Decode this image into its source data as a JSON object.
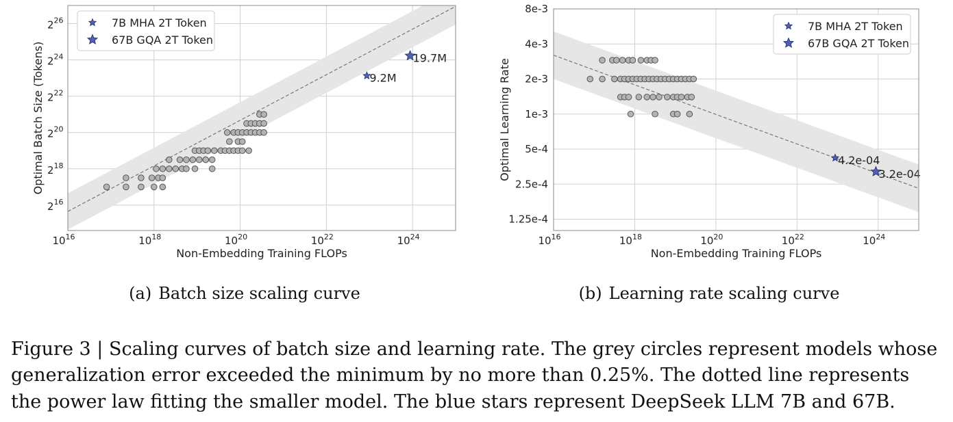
{
  "chart_data": [
    {
      "type": "scatter",
      "panel_label": "(a)",
      "subcaption": "Batch size scaling curve",
      "xlabel": "Non-Embedding Training FLOPs",
      "ylabel": "Optimal Batch Size (Tokens)",
      "x_scale": "log10",
      "y_scale": "log2",
      "xlim_exp10": [
        16,
        25
      ],
      "ylim_exp2": [
        14.6,
        27.0
      ],
      "x_ticks": [
        {
          "base": "10",
          "exp": "16",
          "v": 16
        },
        {
          "base": "10",
          "exp": "18",
          "v": 18
        },
        {
          "base": "10",
          "exp": "20",
          "v": 20
        },
        {
          "base": "10",
          "exp": "22",
          "v": 22
        },
        {
          "base": "10",
          "exp": "24",
          "v": 24
        }
      ],
      "y_ticks": [
        {
          "base": "2",
          "exp": "16",
          "v": 16
        },
        {
          "base": "2",
          "exp": "18",
          "v": 18
        },
        {
          "base": "2",
          "exp": "20",
          "v": 20
        },
        {
          "base": "2",
          "exp": "22",
          "v": 22
        },
        {
          "base": "2",
          "exp": "24",
          "v": 24
        },
        {
          "base": "2",
          "exp": "26",
          "v": 26
        }
      ],
      "grid": true,
      "legend_position": "top-left",
      "fit_line": {
        "style": "dashed",
        "x": [
          16,
          25
        ],
        "y": [
          15.65,
          26.95
        ]
      },
      "band_halfwidth_log2": 1.0,
      "points_log10x_log2y": [
        [
          16.9,
          17
        ],
        [
          17.35,
          17
        ],
        [
          17.35,
          17.5
        ],
        [
          17.7,
          17
        ],
        [
          17.7,
          17.5
        ],
        [
          17.95,
          17.5
        ],
        [
          18.1,
          17.5
        ],
        [
          18.2,
          17.5
        ],
        [
          18.0,
          17
        ],
        [
          18.2,
          17
        ],
        [
          18.05,
          18
        ],
        [
          18.2,
          18
        ],
        [
          18.35,
          18
        ],
        [
          18.5,
          18
        ],
        [
          18.35,
          18.5
        ],
        [
          18.6,
          18.5
        ],
        [
          18.75,
          18.5
        ],
        [
          18.9,
          18.5
        ],
        [
          18.65,
          18
        ],
        [
          18.75,
          18
        ],
        [
          18.95,
          18
        ],
        [
          19.05,
          18.5
        ],
        [
          19.2,
          18.5
        ],
        [
          19.35,
          18.5
        ],
        [
          18.95,
          19
        ],
        [
          19.05,
          19
        ],
        [
          19.15,
          19
        ],
        [
          19.25,
          19
        ],
        [
          19.4,
          19
        ],
        [
          19.55,
          19
        ],
        [
          19.35,
          18
        ],
        [
          19.2,
          18.5
        ],
        [
          19.65,
          19
        ],
        [
          19.75,
          19
        ],
        [
          19.85,
          19
        ],
        [
          19.95,
          19
        ],
        [
          20.05,
          19
        ],
        [
          20.2,
          19
        ],
        [
          19.75,
          19.5
        ],
        [
          19.95,
          19.5
        ],
        [
          20.05,
          19.5
        ],
        [
          19.7,
          20
        ],
        [
          19.85,
          20
        ],
        [
          19.95,
          20
        ],
        [
          20.05,
          20
        ],
        [
          20.15,
          20
        ],
        [
          20.25,
          20
        ],
        [
          20.35,
          20
        ],
        [
          20.45,
          20
        ],
        [
          20.55,
          20
        ],
        [
          20.15,
          20.5
        ],
        [
          20.25,
          20.5
        ],
        [
          20.35,
          20.5
        ],
        [
          20.45,
          20.5
        ],
        [
          20.55,
          20.5
        ],
        [
          20.45,
          21
        ],
        [
          20.55,
          21
        ]
      ],
      "series": [
        {
          "name": "7B MHA 2T Token",
          "x_flops": "8.7e22",
          "y_log2": 23.13,
          "annotation": "9.2M",
          "marker": "star-small"
        },
        {
          "name": "67B GQA 2T Token",
          "x_flops": "8.8e23",
          "y_log2": 24.23,
          "annotation": "19.7M",
          "marker": "star-large"
        }
      ]
    },
    {
      "type": "scatter",
      "panel_label": "(b)",
      "subcaption": "Learning rate scaling curve",
      "xlabel": "Non-Embedding Training FLOPs",
      "ylabel": "Optimal Learning Rate",
      "x_scale": "log10",
      "y_scale": "log2",
      "xlim_exp10": [
        16,
        25
      ],
      "ylim": [
        0.0001,
        0.008
      ],
      "x_ticks": [
        {
          "base": "10",
          "exp": "16",
          "v": 16
        },
        {
          "base": "10",
          "exp": "18",
          "v": 18
        },
        {
          "base": "10",
          "exp": "20",
          "v": 20
        },
        {
          "base": "10",
          "exp": "22",
          "v": 22
        },
        {
          "base": "10",
          "exp": "24",
          "v": 24
        }
      ],
      "y_ticks": [
        {
          "label": "8e-3",
          "v": 0.008
        },
        {
          "label": "4e-3",
          "v": 0.004
        },
        {
          "label": "2e-3",
          "v": 0.002
        },
        {
          "label": "1e-3",
          "v": 0.001
        },
        {
          "label": "5e-4",
          "v": 0.0005
        },
        {
          "label": "2.5e-4",
          "v": 0.00025
        },
        {
          "label": "1.25e-4",
          "v": 0.000125
        }
      ],
      "grid": true,
      "legend_position": "top-right",
      "fit_line": {
        "style": "dashed",
        "x": [
          16,
          25
        ],
        "y": [
          0.0032,
          0.00023
        ]
      },
      "band_factor": 1.6,
      "points": [
        [
          16.9,
          0.002
        ],
        [
          17.2,
          0.002
        ],
        [
          17.2,
          0.0029
        ],
        [
          17.45,
          0.0029
        ],
        [
          17.55,
          0.0029
        ],
        [
          17.7,
          0.0029
        ],
        [
          17.85,
          0.0029
        ],
        [
          17.95,
          0.0029
        ],
        [
          18.15,
          0.0029
        ],
        [
          18.3,
          0.0029
        ],
        [
          18.4,
          0.0029
        ],
        [
          18.5,
          0.0029
        ],
        [
          17.5,
          0.002
        ],
        [
          17.65,
          0.002
        ],
        [
          17.75,
          0.002
        ],
        [
          17.85,
          0.002
        ],
        [
          17.95,
          0.002
        ],
        [
          18.05,
          0.002
        ],
        [
          18.15,
          0.002
        ],
        [
          18.25,
          0.002
        ],
        [
          18.35,
          0.002
        ],
        [
          18.45,
          0.002
        ],
        [
          18.55,
          0.002
        ],
        [
          18.65,
          0.002
        ],
        [
          18.75,
          0.002
        ],
        [
          18.85,
          0.002
        ],
        [
          18.95,
          0.002
        ],
        [
          19.05,
          0.002
        ],
        [
          19.15,
          0.002
        ],
        [
          19.25,
          0.002
        ],
        [
          19.35,
          0.002
        ],
        [
          19.45,
          0.002
        ],
        [
          17.65,
          0.0014
        ],
        [
          17.75,
          0.0014
        ],
        [
          17.85,
          0.0014
        ],
        [
          18.1,
          0.0014
        ],
        [
          18.3,
          0.0014
        ],
        [
          18.45,
          0.0014
        ],
        [
          18.6,
          0.0014
        ],
        [
          18.8,
          0.0014
        ],
        [
          18.95,
          0.0014
        ],
        [
          19.05,
          0.0014
        ],
        [
          19.15,
          0.0014
        ],
        [
          19.3,
          0.0014
        ],
        [
          19.4,
          0.0014
        ],
        [
          17.9,
          0.001
        ],
        [
          18.5,
          0.001
        ],
        [
          18.95,
          0.001
        ],
        [
          19.05,
          0.001
        ],
        [
          19.35,
          0.001
        ]
      ],
      "series": [
        {
          "name": "7B MHA 2T Token",
          "x_flops": "8.7e22",
          "y": 0.00042,
          "annotation": "4.2e-04",
          "marker": "star-small"
        },
        {
          "name": "67B GQA 2T Token",
          "x_flops": "8.8e23",
          "y": 0.00032,
          "annotation": "3.2e-04",
          "marker": "star-large"
        }
      ]
    }
  ],
  "caption": {
    "line1": "Figure 3 | Scaling curves of batch size and learning rate. The grey circles represent models whose",
    "line2": "generalization error exceeded the minimum by no more than 0.25%. The dotted line represents",
    "line3": "the power law fitting the smaller model. The blue stars represent DeepSeek LLM 7B and 67B."
  },
  "colors": {
    "band": "#e6e6e6",
    "point_fill": "#b3b3b3",
    "point_edge": "#555555",
    "star_fill": "#5560b0",
    "star_edge": "#1e2a6e",
    "grid": "#d0d0d0",
    "fit_line": "#777777"
  }
}
